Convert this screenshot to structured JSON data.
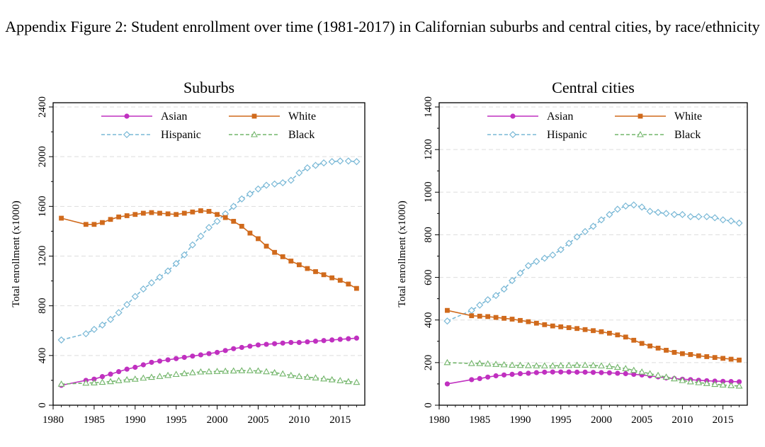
{
  "figure_title": "Appendix Figure 2: Student enrollment over time (1981-2017) in Californian suburbs and central cities, by race/ethnicity",
  "legend": {
    "asian": "Asian",
    "white": "White",
    "hispanic": "Hispanic",
    "black": "Black"
  },
  "colors": {
    "asian": "#c030c0",
    "white": "#d06a1c",
    "hispanic": "#79b8d6",
    "black": "#72b56a",
    "grid": "#dddddd"
  },
  "chart_data": [
    {
      "type": "line",
      "title": "Suburbs",
      "ylabel": "Total enrollment (x1000)",
      "xlabel": "",
      "xlim": [
        1980,
        2018
      ],
      "ylim": [
        0,
        2400
      ],
      "x_ticks": [
        1980,
        1985,
        1990,
        1995,
        2000,
        2005,
        2010,
        2015
      ],
      "y_ticks": [
        0,
        400,
        800,
        1200,
        1600,
        2000,
        2400
      ],
      "x": [
        1981,
        1984,
        1985,
        1986,
        1987,
        1988,
        1989,
        1990,
        1991,
        1992,
        1993,
        1994,
        1995,
        1996,
        1997,
        1998,
        1999,
        2000,
        2001,
        2002,
        2003,
        2004,
        2005,
        2006,
        2007,
        2008,
        2009,
        2010,
        2011,
        2012,
        2013,
        2014,
        2015,
        2016,
        2017
      ],
      "series": [
        {
          "name": "Asian",
          "key": "asian",
          "values": [
            160,
            200,
            210,
            230,
            250,
            270,
            290,
            305,
            325,
            345,
            355,
            365,
            375,
            385,
            395,
            405,
            415,
            425,
            440,
            455,
            465,
            475,
            485,
            490,
            495,
            500,
            505,
            505,
            510,
            515,
            520,
            525,
            530,
            535,
            540
          ]
        },
        {
          "name": "Hispanic",
          "key": "hispanic",
          "values": [
            525,
            575,
            610,
            645,
            690,
            745,
            810,
            875,
            935,
            985,
            1030,
            1080,
            1140,
            1210,
            1290,
            1360,
            1430,
            1480,
            1540,
            1600,
            1660,
            1700,
            1740,
            1770,
            1780,
            1790,
            1810,
            1870,
            1910,
            1930,
            1950,
            1960,
            1965,
            1965,
            1960
          ]
        },
        {
          "name": "White",
          "key": "white",
          "values": [
            1505,
            1455,
            1455,
            1470,
            1495,
            1515,
            1525,
            1535,
            1545,
            1550,
            1545,
            1540,
            1535,
            1545,
            1555,
            1565,
            1560,
            1535,
            1510,
            1480,
            1440,
            1385,
            1340,
            1280,
            1230,
            1195,
            1160,
            1130,
            1100,
            1075,
            1050,
            1025,
            1005,
            975,
            940
          ]
        },
        {
          "name": "Black",
          "key": "black",
          "values": [
            170,
            178,
            180,
            185,
            190,
            198,
            205,
            210,
            218,
            225,
            232,
            240,
            248,
            255,
            262,
            268,
            270,
            272,
            274,
            276,
            278,
            278,
            276,
            270,
            262,
            252,
            240,
            232,
            226,
            220,
            212,
            205,
            198,
            190,
            184
          ]
        }
      ]
    },
    {
      "type": "line",
      "title": "Central cities",
      "ylabel": "Total enrollment (x1000)",
      "xlabel": "",
      "xlim": [
        1980,
        2018
      ],
      "ylim": [
        0,
        1400
      ],
      "x_ticks": [
        1980,
        1985,
        1990,
        1995,
        2000,
        2005,
        2010,
        2015
      ],
      "y_ticks": [
        0,
        200,
        400,
        600,
        800,
        1000,
        1200,
        1400
      ],
      "x": [
        1981,
        1984,
        1985,
        1986,
        1987,
        1988,
        1989,
        1990,
        1991,
        1992,
        1993,
        1994,
        1995,
        1996,
        1997,
        1998,
        1999,
        2000,
        2001,
        2002,
        2003,
        2004,
        2005,
        2006,
        2007,
        2008,
        2009,
        2010,
        2011,
        2012,
        2013,
        2014,
        2015,
        2016,
        2017
      ],
      "series": [
        {
          "name": "Asian",
          "key": "asian",
          "values": [
            100,
            120,
            125,
            132,
            138,
            142,
            145,
            148,
            150,
            153,
            155,
            156,
            156,
            156,
            155,
            155,
            154,
            153,
            152,
            150,
            148,
            145,
            142,
            138,
            133,
            128,
            125,
            122,
            120,
            117,
            115,
            113,
            112,
            111,
            110
          ]
        },
        {
          "name": "Hispanic",
          "key": "hispanic",
          "values": [
            395,
            445,
            470,
            495,
            515,
            545,
            585,
            620,
            655,
            675,
            690,
            705,
            730,
            760,
            790,
            815,
            840,
            870,
            895,
            920,
            935,
            940,
            930,
            910,
            905,
            900,
            895,
            895,
            885,
            885,
            885,
            880,
            870,
            865,
            855
          ]
        },
        {
          "name": "White",
          "key": "white",
          "values": [
            445,
            420,
            418,
            416,
            412,
            408,
            404,
            398,
            392,
            385,
            378,
            372,
            368,
            364,
            360,
            355,
            350,
            345,
            338,
            330,
            320,
            305,
            290,
            278,
            268,
            258,
            248,
            242,
            238,
            232,
            228,
            224,
            220,
            216,
            212
          ]
        },
        {
          "name": "Black",
          "key": "black",
          "values": [
            200,
            196,
            196,
            194,
            192,
            190,
            188,
            187,
            186,
            185,
            185,
            185,
            186,
            187,
            188,
            188,
            187,
            185,
            182,
            178,
            172,
            164,
            156,
            148,
            140,
            132,
            124,
            116,
            110,
            106,
            102,
            98,
            95,
            92,
            90
          ]
        }
      ]
    }
  ]
}
